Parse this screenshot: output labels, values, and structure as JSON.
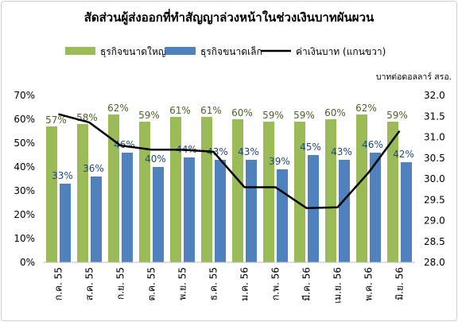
{
  "chart_data": {
    "type": "bar",
    "title": "สัดส่วนผู้ส่งออกที่ทำสัญญาล่วงหน้าในช่วงเงินบาทผันผวน",
    "right_axis_label": "บาทต่อดอลลาร์ สรอ.",
    "categories": [
      "ก.ค. 55",
      "ส.ค. 55",
      "ก.ย. 55",
      "ต.ค. 55",
      "พ.ย. 55",
      "ธ.ค. 55",
      "ม.ค. 56",
      "ก.พ. 56",
      "มี.ค. 56",
      "เม.ย. 56",
      "พ.ค. 56",
      "มิ.ย. 56"
    ],
    "series": [
      {
        "name": "ธุรกิจขนาดใหญ่",
        "type": "bar",
        "axis": "left",
        "color": "#9bbb59",
        "values": [
          57,
          58,
          62,
          59,
          61,
          61,
          60,
          59,
          59,
          60,
          62,
          59
        ],
        "labels": [
          "57%",
          "58%",
          "62%",
          "59%",
          "61%",
          "61%",
          "60%",
          "59%",
          "59%",
          "60%",
          "62%",
          "59%"
        ]
      },
      {
        "name": "ธุรกิจขนาดเล็ก",
        "type": "bar",
        "axis": "left",
        "color": "#4f81bd",
        "values": [
          33,
          36,
          46,
          40,
          44,
          43,
          43,
          39,
          45,
          43,
          46,
          42
        ],
        "labels": [
          "33%",
          "36%",
          "46%",
          "40%",
          "44%",
          "43%",
          "43%",
          "39%",
          "45%",
          "43%",
          "46%",
          "42%"
        ]
      },
      {
        "name": "ค่าเงินบาท (แกนขวา)",
        "type": "line",
        "axis": "right",
        "color": "#000000",
        "values": [
          31.55,
          31.35,
          30.8,
          30.7,
          30.7,
          30.65,
          29.8,
          29.8,
          29.3,
          29.32,
          30.15,
          31.15
        ]
      }
    ],
    "y_left": {
      "min": 0,
      "max": 70,
      "ticks": [
        "0%",
        "10%",
        "20%",
        "30%",
        "40%",
        "50%",
        "60%",
        "70%"
      ]
    },
    "y_right": {
      "min": 28,
      "max": 32,
      "ticks": [
        "28.0",
        "28.5",
        "29.0",
        "29.5",
        "30.0",
        "30.5",
        "31.0",
        "31.5",
        "32.0"
      ]
    },
    "legend_position": "top",
    "grid": false
  }
}
